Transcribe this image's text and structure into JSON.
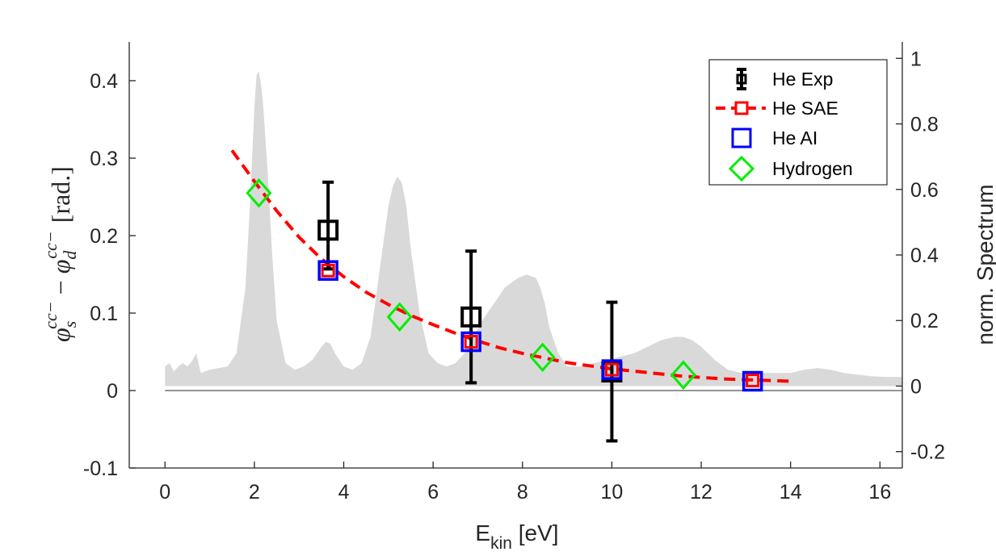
{
  "chart_data": {
    "type": "line",
    "xlabel": {
      "main": "E",
      "sub": "kin",
      "unit": " [eV]"
    },
    "ylabel": {
      "phi": "φ",
      "sub_s": "s",
      "sub_d": "d",
      "sup": "cc−",
      "minus": "−",
      "unit": "[rad.]"
    },
    "y2label": "norm. Spectrum",
    "xlim": [
      -0.8,
      16.5
    ],
    "ylim": [
      -0.1,
      0.45
    ],
    "y2lim": [
      -0.25,
      1.05
    ],
    "xticks": [
      "0",
      "2",
      "4",
      "6",
      "8",
      "10",
      "12",
      "14",
      "16"
    ],
    "yticks": [
      "-0.1",
      "0",
      "0.1",
      "0.2",
      "0.3",
      "0.4"
    ],
    "y2ticks": [
      "-0.2",
      "0",
      "0.2",
      "0.4",
      "0.6",
      "0.8",
      "1"
    ],
    "legend_position": "top-right",
    "series": [
      {
        "name": "He Exp",
        "style": "errorbar-square",
        "color": "#000000",
        "x": [
          3.65,
          6.85,
          10.0
        ],
        "y": [
          0.207,
          0.095,
          0.024
        ],
        "err_low": [
          0.05,
          0.085,
          0.089
        ],
        "err_high": [
          0.062,
          0.085,
          0.09
        ]
      },
      {
        "name": "He SAE",
        "style": "dashed-line-square",
        "color": "#ff0000",
        "x": [
          1.5,
          2.0,
          2.5,
          3.0,
          3.5,
          4.0,
          4.5,
          5.0,
          5.5,
          6.0,
          6.5,
          7.0,
          7.5,
          8.0,
          8.5,
          9.0,
          9.5,
          10.0,
          10.5,
          11.0,
          11.5,
          12.0,
          12.5,
          13.0,
          13.5,
          14.0
        ],
        "y": [
          0.31,
          0.27,
          0.232,
          0.198,
          0.17,
          0.147,
          0.127,
          0.111,
          0.097,
          0.085,
          0.074,
          0.064,
          0.055,
          0.048,
          0.042,
          0.036,
          0.032,
          0.028,
          0.025,
          0.022,
          0.019,
          0.017,
          0.015,
          0.014,
          0.013,
          0.012
        ],
        "marker_x": [
          3.65,
          6.85,
          10.0,
          13.15
        ],
        "marker_y": [
          0.155,
          0.063,
          0.027,
          0.013
        ]
      },
      {
        "name": "He AI",
        "style": "square",
        "color": "#0000ff",
        "x": [
          3.65,
          6.85,
          10.0,
          13.15
        ],
        "y": [
          0.155,
          0.063,
          0.027,
          0.012
        ]
      },
      {
        "name": "Hydrogen",
        "style": "diamond",
        "color": "#00ee00",
        "x": [
          2.1,
          5.25,
          8.45,
          11.6
        ],
        "y": [
          0.255,
          0.095,
          0.043,
          0.02
        ]
      }
    ],
    "spectrum": {
      "color": "#d9d9d9",
      "axis": "right",
      "x": [
        0,
        0.1,
        0.2,
        0.3,
        0.4,
        0.5,
        0.6,
        0.7,
        0.8,
        1.0,
        1.2,
        1.4,
        1.6,
        1.8,
        1.9,
        2.0,
        2.05,
        2.1,
        2.15,
        2.2,
        2.3,
        2.4,
        2.5,
        2.7,
        2.9,
        3.1,
        3.3,
        3.5,
        3.6,
        3.7,
        3.8,
        4.0,
        4.2,
        4.4,
        4.6,
        4.8,
        5.0,
        5.1,
        5.2,
        5.3,
        5.4,
        5.5,
        5.7,
        5.9,
        6.1,
        6.3,
        6.5,
        6.7,
        6.9,
        7.1,
        7.3,
        7.6,
        7.9,
        8.1,
        8.3,
        8.4,
        8.5,
        8.6,
        8.8,
        9.0,
        9.3,
        9.6,
        9.9,
        10.2,
        10.5,
        10.8,
        11.1,
        11.4,
        11.6,
        11.8,
        12.0,
        12.3,
        12.6,
        12.9,
        13.3,
        13.7,
        14.0,
        14.3,
        14.6,
        14.9,
        15.2,
        15.5,
        15.8,
        16.1,
        16.5
      ],
      "y": [
        0.06,
        0.07,
        0.045,
        0.06,
        0.07,
        0.06,
        0.075,
        0.1,
        0.04,
        0.05,
        0.055,
        0.06,
        0.1,
        0.3,
        0.55,
        0.85,
        0.95,
        0.96,
        0.92,
        0.85,
        0.65,
        0.4,
        0.2,
        0.07,
        0.05,
        0.06,
        0.08,
        0.12,
        0.135,
        0.13,
        0.1,
        0.06,
        0.05,
        0.07,
        0.15,
        0.35,
        0.55,
        0.61,
        0.64,
        0.62,
        0.55,
        0.42,
        0.22,
        0.1,
        0.07,
        0.06,
        0.07,
        0.1,
        0.15,
        0.2,
        0.24,
        0.3,
        0.33,
        0.34,
        0.33,
        0.3,
        0.25,
        0.18,
        0.1,
        0.06,
        0.06,
        0.07,
        0.08,
        0.09,
        0.1,
        0.12,
        0.14,
        0.15,
        0.15,
        0.14,
        0.12,
        0.08,
        0.05,
        0.04,
        0.04,
        0.04,
        0.04,
        0.05,
        0.055,
        0.05,
        0.04,
        0.035,
        0.03,
        0.028,
        0.028
      ]
    }
  }
}
